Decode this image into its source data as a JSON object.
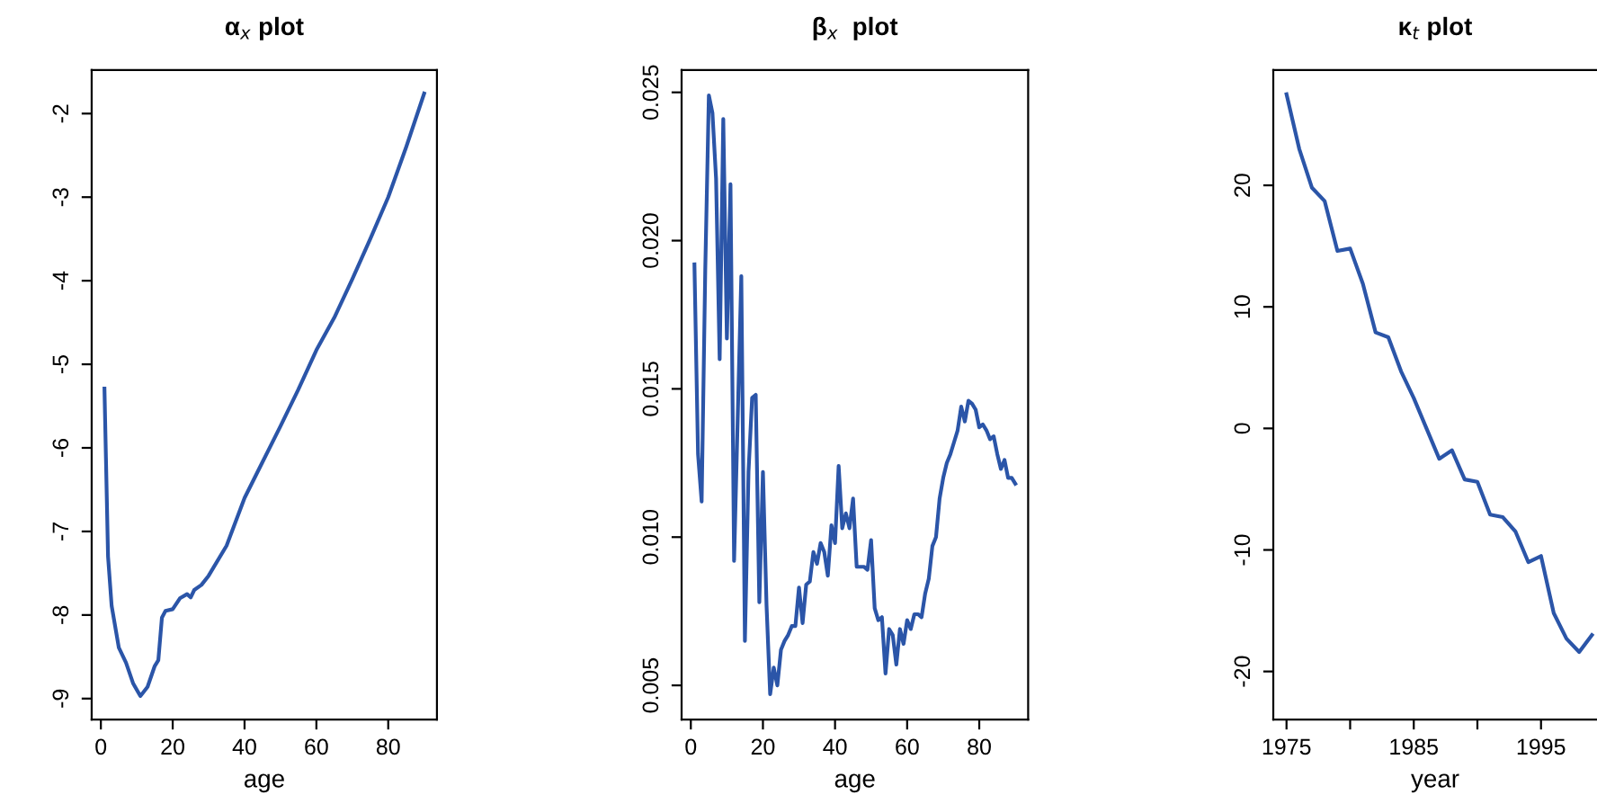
{
  "chart_data": [
    {
      "type": "line",
      "title": "α$_{x}$ plot",
      "xlabel": "age",
      "color": "#2b55a8",
      "xlim": [
        -2.56,
        93.56
      ],
      "ylim": [
        -9.25,
        -1.48
      ],
      "xticks": [
        0,
        20,
        40,
        60,
        80
      ],
      "yticks": [
        -9,
        -8,
        -7,
        -6,
        -5,
        -4,
        -3,
        -2
      ],
      "grid": false,
      "x": [
        1,
        2,
        3,
        5,
        7,
        9,
        11,
        13,
        15,
        16,
        17,
        18,
        20,
        22,
        24,
        25,
        26,
        28,
        30,
        35,
        40,
        45,
        50,
        55,
        60,
        65,
        70,
        75,
        80,
        85,
        90
      ],
      "values": [
        -5.29,
        -7.3,
        -7.89,
        -8.39,
        -8.57,
        -8.82,
        -8.97,
        -8.86,
        -8.61,
        -8.54,
        -8.03,
        -7.95,
        -7.93,
        -7.8,
        -7.75,
        -7.79,
        -7.7,
        -7.64,
        -7.53,
        -7.17,
        -6.6,
        -6.17,
        -5.74,
        -5.3,
        -4.83,
        -4.44,
        -3.98,
        -3.5,
        -3.0,
        -2.4,
        -1.76
      ]
    },
    {
      "type": "line",
      "title": "β$_{x}$  plot",
      "xlabel": "age",
      "color": "#2b55a8",
      "xlim": [
        -2.56,
        93.56
      ],
      "ylim": [
        0.00385,
        0.02575
      ],
      "xticks": [
        0,
        20,
        40,
        60,
        80
      ],
      "yticks": [
        0.005,
        {
          "value": 0.01,
          "label": "0.010"
        },
        0.015,
        {
          "value": 0.02,
          "label": "0.020"
        },
        0.025
      ],
      "grid": false,
      "x": [
        1,
        2,
        3,
        4,
        5,
        6,
        7,
        8,
        9,
        10,
        11,
        12,
        13,
        14,
        15,
        16,
        17,
        18,
        19,
        20,
        21,
        22,
        23,
        24,
        25,
        26,
        27,
        28,
        29,
        30,
        31,
        32,
        33,
        34,
        35,
        36,
        37,
        38,
        39,
        40,
        41,
        42,
        43,
        44,
        45,
        46,
        47,
        48,
        49,
        50,
        51,
        52,
        53,
        54,
        55,
        56,
        57,
        58,
        59,
        60,
        61,
        62,
        63,
        64,
        65,
        66,
        67,
        68,
        69,
        70,
        71,
        72,
        73,
        74,
        75,
        76,
        77,
        78,
        79,
        80,
        81,
        82,
        83,
        84,
        85,
        86,
        87,
        88,
        89,
        90
      ],
      "values": [
        0.0192,
        0.0128,
        0.0112,
        0.019,
        0.0249,
        0.0243,
        0.0221,
        0.016,
        0.0241,
        0.0167,
        0.0219,
        0.0092,
        0.014,
        0.0188,
        0.0065,
        0.0122,
        0.0147,
        0.0148,
        0.0078,
        0.0122,
        0.0077,
        0.0047,
        0.0056,
        0.005,
        0.0062,
        0.0065,
        0.0067,
        0.007,
        0.007,
        0.0083,
        0.0071,
        0.0084,
        0.0085,
        0.0095,
        0.0091,
        0.0098,
        0.0095,
        0.0087,
        0.0104,
        0.0098,
        0.0124,
        0.0103,
        0.0108,
        0.0103,
        0.0113,
        0.009,
        0.009,
        0.009,
        0.0089,
        0.0099,
        0.0076,
        0.0072,
        0.0073,
        0.0054,
        0.0069,
        0.0067,
        0.0057,
        0.0069,
        0.0064,
        0.0072,
        0.0069,
        0.0074,
        0.0074,
        0.0073,
        0.0081,
        0.0086,
        0.0097,
        0.01,
        0.0113,
        0.012,
        0.0125,
        0.0128,
        0.0132,
        0.0136,
        0.0144,
        0.0139,
        0.0146,
        0.0145,
        0.0143,
        0.0137,
        0.0138,
        0.0136,
        0.0133,
        0.0134,
        0.0128,
        0.0123,
        0.0126,
        0.012,
        0.012,
        0.0118
      ]
    },
    {
      "type": "line",
      "title": "κ$_{t}$ plot",
      "xlabel": "year",
      "color": "#2b55a8",
      "xlim": [
        1973.96,
        1999.4
      ],
      "ylim": [
        -23.95,
        29.48
      ],
      "xticks": [
        1975,
        {
          "value": 1980,
          "label": null
        },
        1985,
        {
          "value": 1990,
          "label": null
        },
        1995
      ],
      "yticks": [
        -20,
        -10,
        0,
        10,
        20
      ],
      "grid": false,
      "x": [
        1975,
        1976,
        1977,
        1978,
        1979,
        1980,
        1981,
        1982,
        1983,
        1984,
        1985,
        1986,
        1987,
        1988,
        1989,
        1990,
        1991,
        1992,
        1993,
        1994,
        1995,
        1996,
        1997,
        1998,
        1999
      ],
      "values": [
        27.5,
        23.0,
        19.8,
        18.7,
        14.6,
        14.8,
        11.9,
        7.9,
        7.5,
        4.7,
        2.5,
        0,
        -2.5,
        -1.8,
        -4.2,
        -4.4,
        -7.1,
        -7.3,
        -8.5,
        -11.0,
        -10.5,
        -15.2,
        -17.3,
        -18.4,
        -17.0
      ]
    }
  ]
}
